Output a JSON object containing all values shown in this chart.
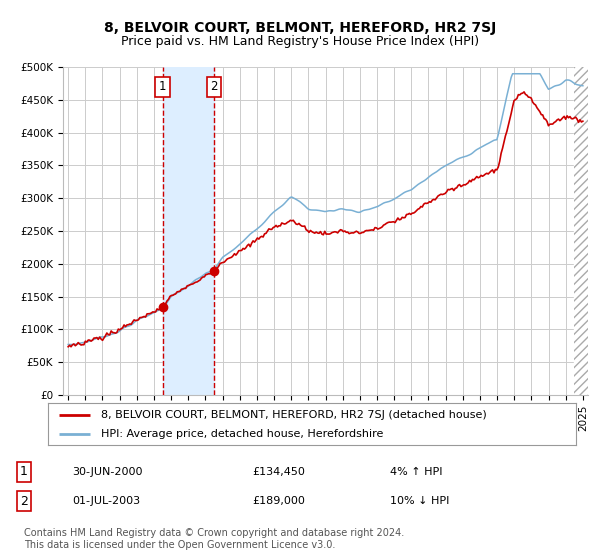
{
  "title": "8, BELVOIR COURT, BELMONT, HEREFORD, HR2 7SJ",
  "subtitle": "Price paid vs. HM Land Registry's House Price Index (HPI)",
  "ylim": [
    0,
    500000
  ],
  "yticks": [
    0,
    50000,
    100000,
    150000,
    200000,
    250000,
    300000,
    350000,
    400000,
    450000,
    500000
  ],
  "ytick_labels": [
    "£0",
    "£50K",
    "£100K",
    "£150K",
    "£200K",
    "£250K",
    "£300K",
    "£350K",
    "£400K",
    "£450K",
    "£500K"
  ],
  "background_color": "#ffffff",
  "plot_bg_color": "#ffffff",
  "grid_color": "#cccccc",
  "line1_color": "#cc0000",
  "line2_color": "#7ab0d4",
  "vline_color": "#cc0000",
  "shade_color": "#ddeeff",
  "event1_x": 2000.5,
  "event2_x": 2003.5,
  "event1_label": "1",
  "event2_label": "2",
  "event1_price": 134450,
  "event2_price": 189000,
  "event1_date": "30-JUN-2000",
  "event1_price_str": "£134,450",
  "event1_hpi": "4% ↑ HPI",
  "event2_date": "01-JUL-2003",
  "event2_price_str": "£189,000",
  "event2_hpi": "10% ↓ HPI",
  "legend_line1": "8, BELVOIR COURT, BELMONT, HEREFORD, HR2 7SJ (detached house)",
  "legend_line2": "HPI: Average price, detached house, Herefordshire",
  "footnote": "Contains HM Land Registry data © Crown copyright and database right 2024.\nThis data is licensed under the Open Government Licence v3.0.",
  "title_fontsize": 10,
  "subtitle_fontsize": 9,
  "tick_fontsize": 7.5,
  "legend_fontsize": 8,
  "table_fontsize": 8,
  "footnote_fontsize": 7,
  "xmin": 1994.7,
  "xmax": 2025.3
}
